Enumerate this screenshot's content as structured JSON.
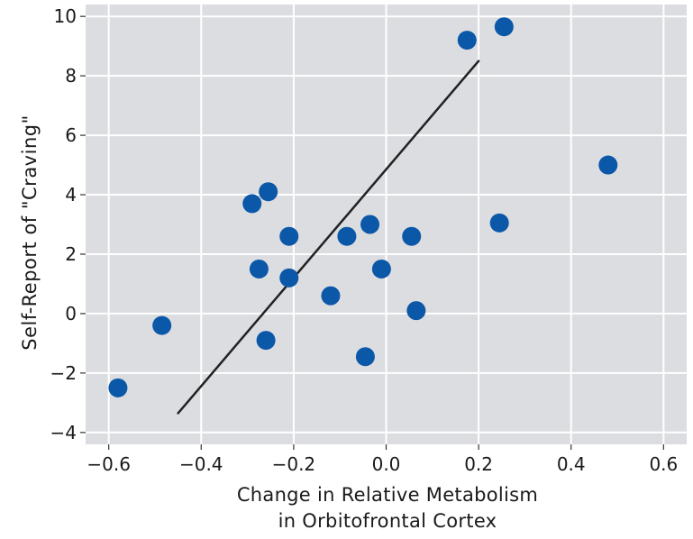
{
  "chart_data": {
    "type": "scatter",
    "title": "",
    "xlabel_lines": [
      "Change in Relative Metabolism",
      "in Orbitofrontal Cortex"
    ],
    "ylabel": "Self-Report of \"Craving\"",
    "xlim": [
      -0.65,
      0.65
    ],
    "ylim": [
      -4.4,
      10.4
    ],
    "xticks": [
      -0.6,
      -0.4,
      -0.2,
      0.0,
      0.2,
      0.4,
      0.6
    ],
    "xtick_labels": [
      "−0.6",
      "−0.4",
      "−0.2",
      "0.0",
      "0.2",
      "0.4",
      "0.6"
    ],
    "yticks": [
      -4,
      -2,
      0,
      2,
      4,
      6,
      8,
      10
    ],
    "ytick_labels": [
      "−4",
      "−2",
      "0",
      "2",
      "4",
      "6",
      "8",
      "10"
    ],
    "grid": true,
    "background_color": "#dcdde0",
    "grid_color": "#ffffff",
    "point_color": "#0b57a8",
    "line_color": "#222222",
    "points": [
      {
        "x": -0.58,
        "y": -2.5
      },
      {
        "x": -0.485,
        "y": -0.4
      },
      {
        "x": -0.29,
        "y": 3.7
      },
      {
        "x": -0.255,
        "y": 4.1
      },
      {
        "x": -0.275,
        "y": 1.5
      },
      {
        "x": -0.26,
        "y": -0.9
      },
      {
        "x": -0.21,
        "y": 2.6
      },
      {
        "x": -0.21,
        "y": 1.2
      },
      {
        "x": -0.12,
        "y": 0.6
      },
      {
        "x": -0.085,
        "y": 2.6
      },
      {
        "x": -0.035,
        "y": 3.0
      },
      {
        "x": -0.045,
        "y": -1.45
      },
      {
        "x": -0.01,
        "y": 1.5
      },
      {
        "x": 0.055,
        "y": 2.6
      },
      {
        "x": 0.065,
        "y": 0.1
      },
      {
        "x": 0.175,
        "y": 9.2
      },
      {
        "x": 0.255,
        "y": 9.65
      },
      {
        "x": 0.245,
        "y": 3.05
      },
      {
        "x": 0.48,
        "y": 5.0
      }
    ],
    "fit_line": {
      "x1": -0.45,
      "y1": -3.35,
      "x2": 0.2,
      "y2": 8.5
    }
  }
}
